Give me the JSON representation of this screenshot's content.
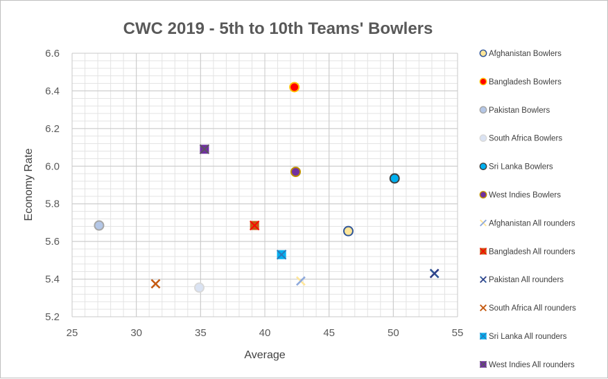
{
  "chart_data": {
    "type": "scatter",
    "title": "CWC 2019 - 5th to 10th Teams' Bowlers",
    "xlabel": "Average",
    "ylabel": "Economy Rate",
    "xlim": [
      25,
      55
    ],
    "ylim": [
      5.2,
      6.6
    ],
    "x_ticks": [
      25,
      30,
      35,
      40,
      45,
      50,
      55
    ],
    "x_tick_labels": [
      "25",
      "30",
      "35",
      "40",
      "45",
      "50",
      "55"
    ],
    "y_ticks": [
      5.2,
      5.4,
      5.6,
      5.8,
      6.0,
      6.2,
      6.4,
      6.6
    ],
    "y_tick_labels": [
      "5.2",
      "5.4",
      "5.6",
      "5.8",
      "6.0",
      "6.2",
      "6.4",
      "6.6"
    ],
    "grid": true,
    "legend_position": "right",
    "series": [
      {
        "name": "Afghanistan Bowlers",
        "marker": "circle",
        "fill": "#FFE699",
        "stroke": "#2F5597",
        "points": [
          [
            46.5,
            5.655
          ]
        ]
      },
      {
        "name": "Bangladesh Bowlers",
        "marker": "circle",
        "fill": "#FF0000",
        "stroke": "#FFC000",
        "points": [
          [
            42.3,
            6.42
          ]
        ]
      },
      {
        "name": "Pakistan Bowlers",
        "marker": "circle",
        "fill": "#B4C7E7",
        "stroke": "#A6A6A6",
        "points": [
          [
            27.1,
            5.685
          ]
        ]
      },
      {
        "name": "South Africa Bowlers",
        "marker": "circle",
        "fill": "#DAE3F3",
        "stroke": "#D9D9D9",
        "points": [
          [
            34.9,
            5.355
          ]
        ]
      },
      {
        "name": "Sri Lanka Bowlers",
        "marker": "circle",
        "fill": "#00B0F0",
        "stroke": "#404040",
        "points": [
          [
            50.1,
            5.935
          ]
        ]
      },
      {
        "name": "West Indies Bowlers",
        "marker": "circle",
        "fill": "#7030A0",
        "stroke": "#BF9000",
        "points": [
          [
            42.4,
            5.97
          ]
        ]
      },
      {
        "name": "Afghanistan All rounders",
        "marker": "x",
        "fill": "#FFE699",
        "stroke": "#8FAADC",
        "points": [
          [
            42.8,
            5.39
          ]
        ]
      },
      {
        "name": "Bangladesh All rounders",
        "marker": "square-x",
        "fill": "#C55A11",
        "stroke": "#FF0000",
        "points": [
          [
            39.2,
            5.685
          ]
        ]
      },
      {
        "name": "Pakistan All rounders",
        "marker": "x",
        "fill": "#2F5597",
        "stroke": "#2F3E86",
        "points": [
          [
            53.2,
            5.43
          ]
        ]
      },
      {
        "name": "South Africa All rounders",
        "marker": "x",
        "fill": "#C55A11",
        "stroke": "#C55A11",
        "points": [
          [
            31.5,
            5.375
          ]
        ]
      },
      {
        "name": "Sri Lanka All rounders",
        "marker": "square-x",
        "fill": "#00B0F0",
        "stroke": "#2E75B6",
        "points": [
          [
            41.3,
            5.53
          ]
        ]
      },
      {
        "name": "West Indies All rounders",
        "marker": "square-x",
        "fill": "#7030A0",
        "stroke": "#595959",
        "points": [
          [
            35.3,
            6.09
          ]
        ]
      }
    ]
  }
}
